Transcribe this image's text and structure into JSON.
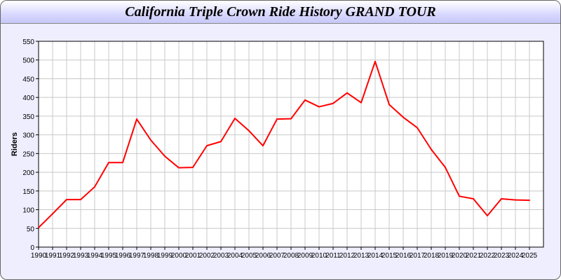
{
  "chart_data": {
    "type": "line",
    "title": "California Triple Crown Ride History GRAND TOUR",
    "xlabel": "",
    "ylabel": "Riders",
    "ylim": [
      0,
      550
    ],
    "yticks": [
      0,
      50,
      100,
      150,
      200,
      250,
      300,
      350,
      400,
      450,
      500,
      550
    ],
    "grid": true,
    "line_color": "#ff0000",
    "x": [
      1990,
      1991,
      1992,
      1993,
      1994,
      1995,
      1996,
      1997,
      1998,
      1999,
      2000,
      2001,
      2002,
      2003,
      2004,
      2005,
      2006,
      2007,
      2008,
      2009,
      2010,
      2011,
      2012,
      2013,
      2014,
      2015,
      2016,
      2017,
      2018,
      2019,
      2020,
      2021,
      2022,
      2023,
      2024,
      2025
    ],
    "values": [
      52,
      89,
      127,
      127,
      161,
      226,
      226,
      342,
      286,
      243,
      212,
      213,
      271,
      282,
      344,
      311,
      271,
      342,
      343,
      393,
      375,
      384,
      412,
      386,
      496,
      381,
      347,
      319,
      261,
      213,
      136,
      129,
      84,
      129,
      126,
      125
    ]
  }
}
